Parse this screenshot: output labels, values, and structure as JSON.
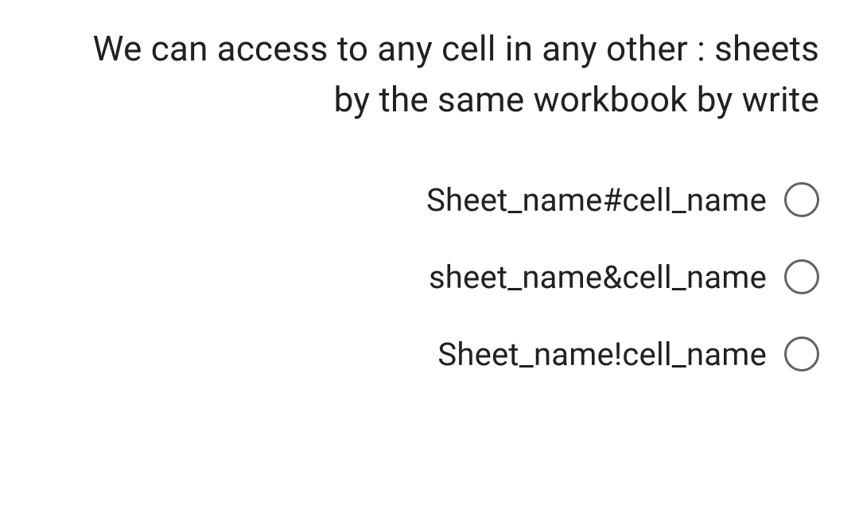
{
  "question": {
    "text": "We can access to any cell in any other : sheets by the same workbook by write"
  },
  "options": [
    {
      "label": "Sheet_name#cell_name",
      "selected": false
    },
    {
      "label": "sheet_name&cell_name",
      "selected": false
    },
    {
      "label": "Sheet_name!cell_name",
      "selected": false
    }
  ],
  "colors": {
    "text": "#202124",
    "radio_border": "#5f6368",
    "background": "#ffffff"
  }
}
